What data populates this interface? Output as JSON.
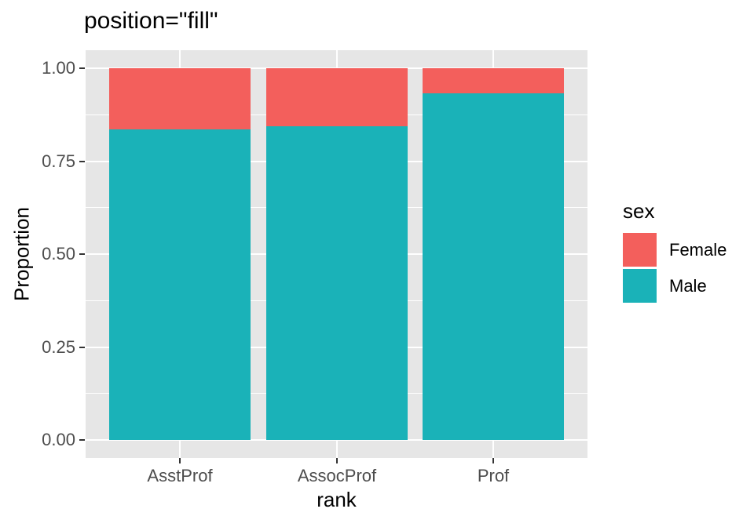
{
  "figure": {
    "background": "#FFFFFF",
    "panel_background": "#E6E6E6",
    "gridline_color": "#FFFFFF",
    "tick_color": "#333333",
    "tick_label_color": "#4D4D4D"
  },
  "chart_data": {
    "type": "bar",
    "stacked": true,
    "position": "fill",
    "title": "position=\"fill\"",
    "xlabel": "rank",
    "ylabel": "Proportion",
    "categories": [
      "AsstProf",
      "AssocProf",
      "Prof"
    ],
    "series": [
      {
        "name": "Female",
        "color": "#F35F5C",
        "values": [
          0.164,
          0.156,
          0.068
        ]
      },
      {
        "name": "Male",
        "color": "#1AB2B8",
        "values": [
          0.836,
          0.844,
          0.932
        ]
      }
    ],
    "ylim": [
      0,
      1
    ],
    "yticks": [
      {
        "value": 1.0,
        "label": "1.00"
      },
      {
        "value": 0.75,
        "label": "0.75"
      },
      {
        "value": 0.5,
        "label": "0.50"
      },
      {
        "value": 0.25,
        "label": "0.25"
      },
      {
        "value": 0.0,
        "label": "0.00"
      }
    ],
    "minor_breaks": [
      0.875,
      0.625,
      0.375,
      0.125
    ],
    "grid": true,
    "legend": {
      "title": "sex",
      "position": "right",
      "entries": [
        "Female",
        "Male"
      ]
    }
  }
}
